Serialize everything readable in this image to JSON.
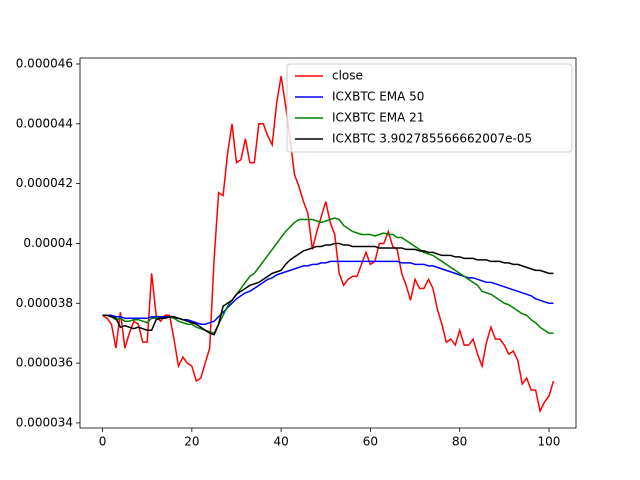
{
  "chart_data": {
    "type": "line",
    "x": [
      0,
      1,
      2,
      3,
      4,
      5,
      6,
      7,
      8,
      9,
      10,
      11,
      12,
      13,
      14,
      15,
      16,
      17,
      18,
      19,
      20,
      21,
      22,
      23,
      24,
      25,
      26,
      27,
      28,
      29,
      30,
      31,
      32,
      33,
      34,
      35,
      36,
      37,
      38,
      39,
      40,
      41,
      42,
      43,
      44,
      45,
      46,
      47,
      48,
      49,
      50,
      51,
      52,
      53,
      54,
      55,
      56,
      57,
      58,
      59,
      60,
      61,
      62,
      63,
      64,
      65,
      66,
      67,
      68,
      69,
      70,
      71,
      72,
      73,
      74,
      75,
      76,
      77,
      78,
      79,
      80,
      81,
      82,
      83,
      84,
      85,
      86,
      87,
      88,
      89,
      90,
      91,
      92,
      93,
      94,
      95,
      96,
      97,
      98,
      99,
      100,
      101
    ],
    "series": [
      {
        "name": "close",
        "color": "#ff0000",
        "values": [
          3.76e-05,
          3.75e-05,
          3.73e-05,
          3.65e-05,
          3.77e-05,
          3.65e-05,
          3.7e-05,
          3.74e-05,
          3.73e-05,
          3.67e-05,
          3.67e-05,
          3.9e-05,
          3.76e-05,
          3.74e-05,
          3.76e-05,
          3.76e-05,
          3.68e-05,
          3.59e-05,
          3.62e-05,
          3.6e-05,
          3.59e-05,
          3.54e-05,
          3.55e-05,
          3.6e-05,
          3.65e-05,
          3.95e-05,
          4.17e-05,
          4.16e-05,
          4.3e-05,
          4.4e-05,
          4.27e-05,
          4.28e-05,
          4.35e-05,
          4.27e-05,
          4.27e-05,
          4.4e-05,
          4.4e-05,
          4.36e-05,
          4.33e-05,
          4.47e-05,
          4.56e-05,
          4.46e-05,
          4.35e-05,
          4.23e-05,
          4.19e-05,
          4.14e-05,
          4.1e-05,
          3.98e-05,
          4.04e-05,
          4.09e-05,
          4.14e-05,
          4.07e-05,
          4.03e-05,
          3.9e-05,
          3.86e-05,
          3.88e-05,
          3.89e-05,
          3.89e-05,
          3.93e-05,
          3.97e-05,
          3.93e-05,
          3.94e-05,
          4e-05,
          4e-05,
          4.04e-05,
          3.99e-05,
          3.98e-05,
          3.9e-05,
          3.86e-05,
          3.81e-05,
          3.88e-05,
          3.85e-05,
          3.85e-05,
          3.88e-05,
          3.85e-05,
          3.78e-05,
          3.73e-05,
          3.67e-05,
          3.68e-05,
          3.66e-05,
          3.71e-05,
          3.66e-05,
          3.66e-05,
          3.68e-05,
          3.63e-05,
          3.59e-05,
          3.67e-05,
          3.72e-05,
          3.68e-05,
          3.68e-05,
          3.66e-05,
          3.63e-05,
          3.64e-05,
          3.61e-05,
          3.53e-05,
          3.55e-05,
          3.51e-05,
          3.51e-05,
          3.44e-05,
          3.47e-05,
          3.49e-05,
          3.54e-05
        ]
      },
      {
        "name": "ICXBTC EMA 50",
        "color": "#0000ff",
        "values": [
          3.76e-05,
          3.76e-05,
          3.76e-05,
          3.755e-05,
          3.755e-05,
          3.75e-05,
          3.75e-05,
          3.75e-05,
          3.75e-05,
          3.75e-05,
          3.75e-05,
          3.755e-05,
          3.755e-05,
          3.755e-05,
          3.755e-05,
          3.755e-05,
          3.75e-05,
          3.75e-05,
          3.745e-05,
          3.745e-05,
          3.74e-05,
          3.735e-05,
          3.73e-05,
          3.73e-05,
          3.735e-05,
          3.74e-05,
          3.755e-05,
          3.77e-05,
          3.785e-05,
          3.8e-05,
          3.815e-05,
          3.825e-05,
          3.835e-05,
          3.84e-05,
          3.85e-05,
          3.86e-05,
          3.87e-05,
          3.88e-05,
          3.885e-05,
          3.895e-05,
          3.9e-05,
          3.905e-05,
          3.91e-05,
          3.915e-05,
          3.92e-05,
          3.925e-05,
          3.925e-05,
          3.93e-05,
          3.93e-05,
          3.935e-05,
          3.935e-05,
          3.94e-05,
          3.94e-05,
          3.94e-05,
          3.94e-05,
          3.94e-05,
          3.94e-05,
          3.94e-05,
          3.94e-05,
          3.94e-05,
          3.94e-05,
          3.94e-05,
          3.94e-05,
          3.94e-05,
          3.94e-05,
          3.94e-05,
          3.94e-05,
          3.935e-05,
          3.935e-05,
          3.935e-05,
          3.93e-05,
          3.93e-05,
          3.93e-05,
          3.925e-05,
          3.925e-05,
          3.92e-05,
          3.915e-05,
          3.91e-05,
          3.905e-05,
          3.9e-05,
          3.895e-05,
          3.89e-05,
          3.885e-05,
          3.885e-05,
          3.88e-05,
          3.875e-05,
          3.87e-05,
          3.87e-05,
          3.865e-05,
          3.86e-05,
          3.855e-05,
          3.85e-05,
          3.845e-05,
          3.84e-05,
          3.835e-05,
          3.83e-05,
          3.825e-05,
          3.815e-05,
          3.81e-05,
          3.805e-05,
          3.8e-05,
          3.8e-05
        ]
      },
      {
        "name": "ICXBTC EMA 21",
        "color": "#008000",
        "values": [
          3.76e-05,
          3.76e-05,
          3.755e-05,
          3.745e-05,
          3.75e-05,
          3.74e-05,
          3.74e-05,
          3.745e-05,
          3.745e-05,
          3.74e-05,
          3.735e-05,
          3.75e-05,
          3.75e-05,
          3.75e-05,
          3.75e-05,
          3.755e-05,
          3.75e-05,
          3.74e-05,
          3.735e-05,
          3.73e-05,
          3.73e-05,
          3.72e-05,
          3.715e-05,
          3.71e-05,
          3.705e-05,
          3.7e-05,
          3.73e-05,
          3.76e-05,
          3.79e-05,
          3.81e-05,
          3.83e-05,
          3.85e-05,
          3.87e-05,
          3.89e-05,
          3.9e-05,
          3.92e-05,
          3.94e-05,
          3.96e-05,
          3.98e-05,
          4e-05,
          4.02e-05,
          4.04e-05,
          4.055e-05,
          4.07e-05,
          4.08e-05,
          4.08e-05,
          4.08e-05,
          4.08e-05,
          4.075e-05,
          4.07e-05,
          4.075e-05,
          4.08e-05,
          4.085e-05,
          4.08e-05,
          4.06e-05,
          4.05e-05,
          4.04e-05,
          4.035e-05,
          4.03e-05,
          4.03e-05,
          4.03e-05,
          4.025e-05,
          4.03e-05,
          4.035e-05,
          4.03e-05,
          4.03e-05,
          4.02e-05,
          4.02e-05,
          4.01e-05,
          4e-05,
          3.99e-05,
          3.98e-05,
          3.97e-05,
          3.965e-05,
          3.96e-05,
          3.95e-05,
          3.94e-05,
          3.93e-05,
          3.92e-05,
          3.91e-05,
          3.9e-05,
          3.89e-05,
          3.88e-05,
          3.87e-05,
          3.86e-05,
          3.84e-05,
          3.835e-05,
          3.83e-05,
          3.82e-05,
          3.81e-05,
          3.8e-05,
          3.795e-05,
          3.785e-05,
          3.775e-05,
          3.765e-05,
          3.76e-05,
          3.745e-05,
          3.735e-05,
          3.72e-05,
          3.71e-05,
          3.7e-05,
          3.7e-05
        ]
      },
      {
        "name": "ICXBTC 3.902785566662007e-05",
        "color": "#000000",
        "values": [
          3.76e-05,
          3.76e-05,
          3.755e-05,
          3.75e-05,
          3.72e-05,
          3.725e-05,
          3.72e-05,
          3.715e-05,
          3.72e-05,
          3.715e-05,
          3.71e-05,
          3.71e-05,
          3.745e-05,
          3.75e-05,
          3.75e-05,
          3.755e-05,
          3.755e-05,
          3.75e-05,
          3.745e-05,
          3.74e-05,
          3.735e-05,
          3.73e-05,
          3.72e-05,
          3.71e-05,
          3.7e-05,
          3.695e-05,
          3.73e-05,
          3.79e-05,
          3.8e-05,
          3.81e-05,
          3.83e-05,
          3.84e-05,
          3.85e-05,
          3.86e-05,
          3.865e-05,
          3.87e-05,
          3.88e-05,
          3.89e-05,
          3.9e-05,
          3.905e-05,
          3.91e-05,
          3.93e-05,
          3.945e-05,
          3.955e-05,
          3.965e-05,
          3.975e-05,
          3.98e-05,
          3.985e-05,
          3.99e-05,
          3.99e-05,
          3.995e-05,
          3.995e-05,
          4e-05,
          4e-05,
          3.995e-05,
          3.995e-05,
          3.99e-05,
          3.99e-05,
          3.99e-05,
          3.99e-05,
          3.99e-05,
          3.99e-05,
          3.985e-05,
          3.985e-05,
          3.985e-05,
          3.985e-05,
          3.985e-05,
          3.985e-05,
          3.98e-05,
          3.98e-05,
          3.98e-05,
          3.975e-05,
          3.975e-05,
          3.97e-05,
          3.97e-05,
          3.965e-05,
          3.96e-05,
          3.96e-05,
          3.96e-05,
          3.955e-05,
          3.955e-05,
          3.95e-05,
          3.95e-05,
          3.95e-05,
          3.945e-05,
          3.945e-05,
          3.945e-05,
          3.94e-05,
          3.94e-05,
          3.94e-05,
          3.935e-05,
          3.935e-05,
          3.93e-05,
          3.93e-05,
          3.925e-05,
          3.92e-05,
          3.915e-05,
          3.91e-05,
          3.91e-05,
          3.905e-05,
          3.9e-05,
          3.9e-05
        ]
      }
    ],
    "xlim": [
      -5.05,
      106.05
    ],
    "xticks": [
      0,
      20,
      40,
      60,
      80,
      100
    ],
    "ylim": [
      3.383e-05,
      4.62e-05
    ],
    "yticks": [
      3.4e-05,
      3.6e-05,
      3.8e-05,
      4e-05,
      4.2e-05,
      4.4e-05,
      4.6e-05
    ],
    "legend": "upper right"
  }
}
